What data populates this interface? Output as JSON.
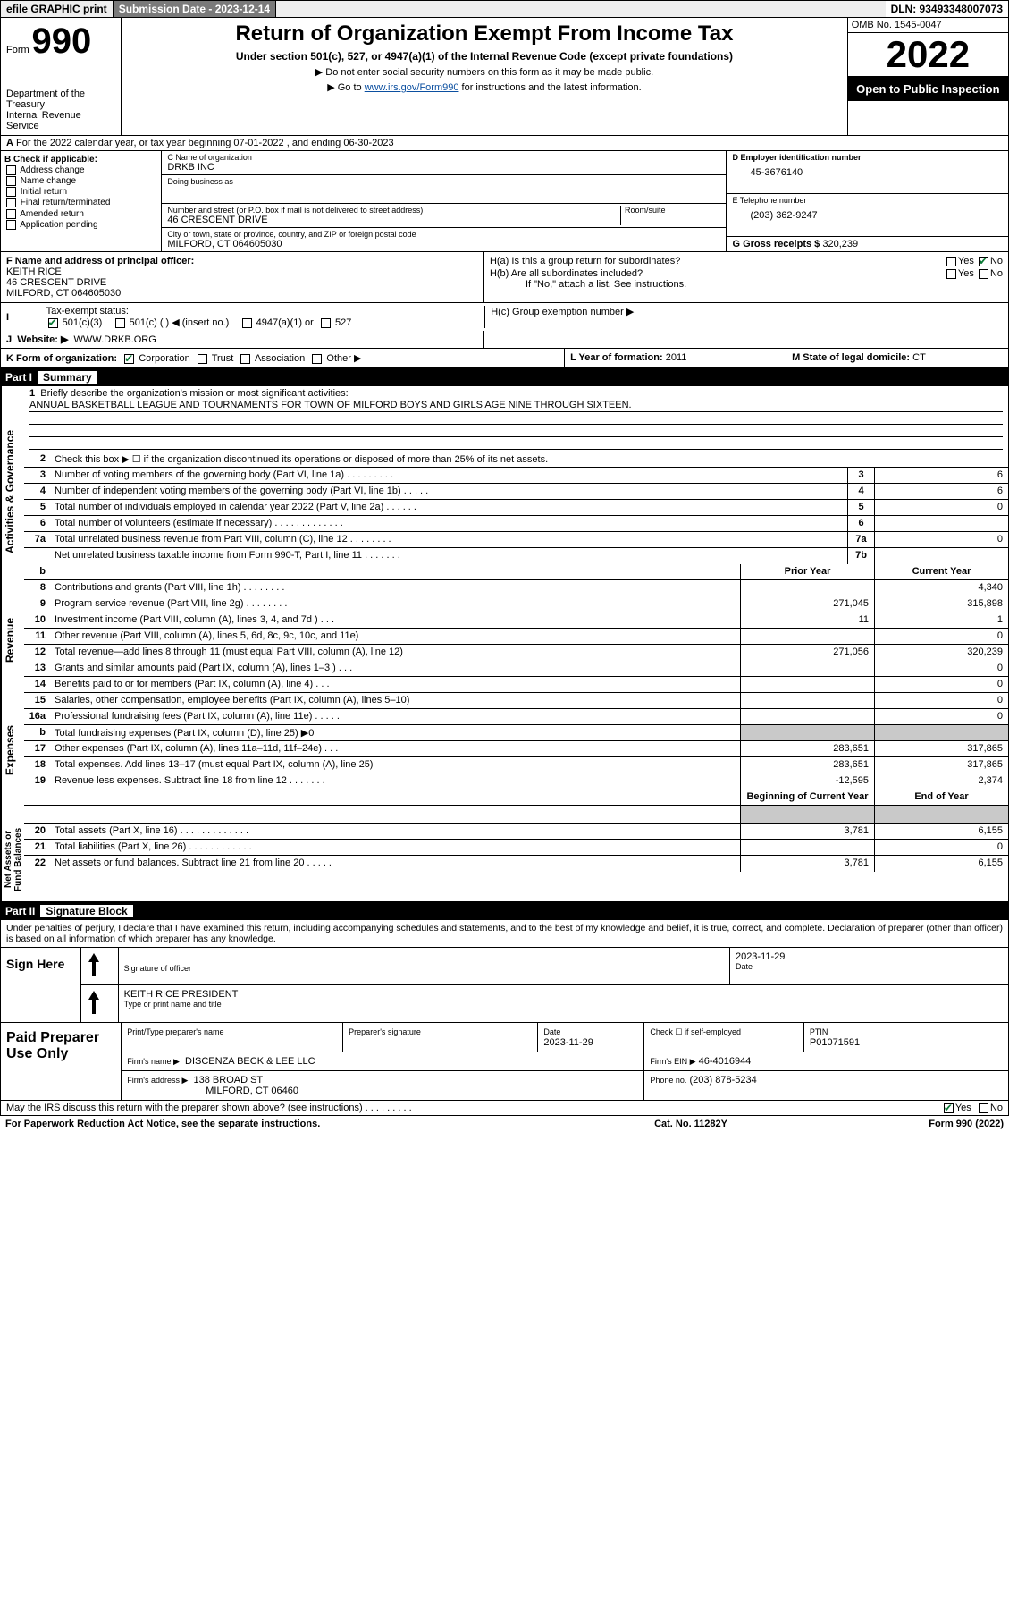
{
  "colors": {
    "accent": "#0b7a36",
    "link": "#0b4fa0",
    "dark": "#7a7a7a"
  },
  "header": {
    "efile": "efile GRAPHIC print",
    "submission": "Submission Date - 2023-12-14",
    "dln": "DLN: 93493348007073"
  },
  "formhead": {
    "form_label": "Form",
    "form_no": "990",
    "title": "Return of Organization Exempt From Income Tax",
    "sub1": "Under section 501(c), 527, or 4947(a)(1) of the Internal Revenue Code (except private foundations)",
    "sub2": "▶ Do not enter social security numbers on this form as it may be made public.",
    "sub3_pre": "▶ Go to ",
    "sub3_link": "www.irs.gov/Form990",
    "sub3_post": " for instructions and the latest information.",
    "dept": "Department of the Treasury\nInternal Revenue Service",
    "omb": "OMB No. 1545-0047",
    "year": "2022",
    "open": "Open to Public Inspection"
  },
  "A": {
    "text": "For the 2022 calendar year, or tax year beginning 07-01-2022   , and ending 06-30-2023"
  },
  "B": {
    "heading": "B Check if applicable:",
    "opts": [
      "Address change",
      "Name change",
      "Initial return",
      "Final return/terminated",
      "Amended return",
      "Application pending"
    ]
  },
  "C": {
    "label": "C Name of organization",
    "name": "DRKB INC",
    "dba_label": "Doing business as",
    "dba": "",
    "addr_label": "Number and street (or P.O. box if mail is not delivered to street address)",
    "room_label": "Room/suite",
    "addr": "46 CRESCENT DRIVE",
    "city_label": "City or town, state or province, country, and ZIP or foreign postal code",
    "city": "MILFORD, CT  064605030"
  },
  "D": {
    "label": "D Employer identification number",
    "val": "45-3676140"
  },
  "E": {
    "label": "E Telephone number",
    "val": "(203) 362-9247"
  },
  "G": {
    "label": "G Gross receipts $",
    "val": "320,239"
  },
  "F": {
    "label": "F Name and address of principal officer:",
    "name": "KEITH RICE",
    "addr1": "46 CRESCENT DRIVE",
    "addr2": "MILFORD, CT  064605030"
  },
  "H": {
    "a": "H(a)  Is this a group return for subordinates?",
    "b": "H(b)  Are all subordinates included?",
    "note": "If \"No,\" attach a list. See instructions.",
    "c": "H(c)  Group exemption number ▶"
  },
  "I": {
    "label": "Tax-exempt status:",
    "opts": [
      "501(c)(3)",
      "501(c) (   ) ◀ (insert no.)",
      "4947(a)(1) or",
      "527"
    ]
  },
  "J": {
    "label": "Website: ▶",
    "val": "WWW.DRKB.ORG"
  },
  "K": {
    "label": "K Form of organization:",
    "opts": [
      "Corporation",
      "Trust",
      "Association",
      "Other ▶"
    ]
  },
  "L": {
    "label": "L Year of formation:",
    "val": "2011"
  },
  "M": {
    "label": "M State of legal domicile:",
    "val": "CT"
  },
  "part1": {
    "tag": "Part I",
    "title": "Summary"
  },
  "mission": {
    "q": "Briefly describe the organization's mission or most significant activities:",
    "text": "ANNUAL BASKETBALL LEAGUE AND TOURNAMENTS FOR TOWN OF MILFORD BOYS AND GIRLS AGE NINE THROUGH SIXTEEN."
  },
  "gov": [
    {
      "n": "2",
      "t": "Check this box ▶ ☐  if the organization discontinued its operations or disposed of more than 25% of its net assets."
    },
    {
      "n": "3",
      "t": "Number of voting members of the governing body (Part VI, line 1a)  .    .    .    .    .    .    .    .    .",
      "bx": "3",
      "v": "6"
    },
    {
      "n": "4",
      "t": "Number of independent voting members of the governing body (Part VI, line 1b)  .    .    .    .    .",
      "bx": "4",
      "v": "6"
    },
    {
      "n": "5",
      "t": "Total number of individuals employed in calendar year 2022 (Part V, line 2a)  .    .    .    .    .    .",
      "bx": "5",
      "v": "0"
    },
    {
      "n": "6",
      "t": "Total number of volunteers (estimate if necessary)  .    .    .    .    .    .    .    .    .    .    .    .    .",
      "bx": "6",
      "v": ""
    },
    {
      "n": "7a",
      "t": "Total unrelated business revenue from Part VIII, column (C), line 12  .    .    .    .    .    .    .    .",
      "bx": "7a",
      "v": "0"
    },
    {
      "n": "",
      "t": "Net unrelated business taxable income from Form 990-T, Part I, line 11  .    .    .    .    .    .    .",
      "bx": "7b",
      "v": ""
    }
  ],
  "col_hdr": {
    "prior": "Prior Year",
    "current": "Current Year"
  },
  "rev": [
    {
      "n": "8",
      "t": "Contributions and grants (Part VIII, line 1h)  .    .    .    .    .    .    .    .",
      "p": "",
      "c": "4,340"
    },
    {
      "n": "9",
      "t": "Program service revenue (Part VIII, line 2g)  .    .    .    .    .    .    .    .",
      "p": "271,045",
      "c": "315,898"
    },
    {
      "n": "10",
      "t": "Investment income (Part VIII, column (A), lines 3, 4, and 7d )  .    .    .",
      "p": "11",
      "c": "1"
    },
    {
      "n": "11",
      "t": "Other revenue (Part VIII, column (A), lines 5, 6d, 8c, 9c, 10c, and 11e)",
      "p": "",
      "c": "0"
    },
    {
      "n": "12",
      "t": "Total revenue—add lines 8 through 11 (must equal Part VIII, column (A), line 12)",
      "p": "271,056",
      "c": "320,239"
    }
  ],
  "exp": [
    {
      "n": "13",
      "t": "Grants and similar amounts paid (Part IX, column (A), lines 1–3 )  .    .    .",
      "p": "",
      "c": "0"
    },
    {
      "n": "14",
      "t": "Benefits paid to or for members (Part IX, column (A), line 4)  .    .    .",
      "p": "",
      "c": "0"
    },
    {
      "n": "15",
      "t": "Salaries, other compensation, employee benefits (Part IX, column (A), lines 5–10)",
      "p": "",
      "c": "0"
    },
    {
      "n": "16a",
      "t": "Professional fundraising fees (Part IX, column (A), line 11e)  .    .    .    .    .",
      "p": "",
      "c": "0"
    },
    {
      "n": "b",
      "t": "Total fundraising expenses (Part IX, column (D), line 25) ▶0",
      "p": "filler",
      "c": "filler"
    },
    {
      "n": "17",
      "t": "Other expenses (Part IX, column (A), lines 11a–11d, 11f–24e)  .    .    .",
      "p": "283,651",
      "c": "317,865"
    },
    {
      "n": "18",
      "t": "Total expenses. Add lines 13–17 (must equal Part IX, column (A), line 25)",
      "p": "283,651",
      "c": "317,865"
    },
    {
      "n": "19",
      "t": "Revenue less expenses. Subtract line 18 from line 12  .    .    .    .    .    .    .",
      "p": "-12,595",
      "c": "2,374"
    }
  ],
  "na_hdr": {
    "beg": "Beginning of Current Year",
    "end": "End of Year"
  },
  "na": [
    {
      "n": "20",
      "t": "Total assets (Part X, line 16)  .    .    .    .    .    .    .    .    .    .    .    .    .",
      "p": "3,781",
      "c": "6,155"
    },
    {
      "n": "21",
      "t": "Total liabilities (Part X, line 26)  .    .    .    .    .    .    .    .    .    .    .    .",
      "p": "",
      "c": "0"
    },
    {
      "n": "22",
      "t": "Net assets or fund balances. Subtract line 21 from line 20  .    .    .    .    .",
      "p": "3,781",
      "c": "6,155"
    }
  ],
  "part2": {
    "tag": "Part II",
    "title": "Signature Block"
  },
  "sig_note": "Under penalties of perjury, I declare that I have examined this return, including accompanying schedules and statements, and to the best of my knowledge and belief, it is true, correct, and complete. Declaration of preparer (other than officer) is based on all information of which preparer has any knowledge.",
  "sign": {
    "lab": "Sign Here",
    "sig_lab": "Signature of officer",
    "date_lab": "Date",
    "date": "2023-11-29",
    "name": "KEITH RICE PRESIDENT",
    "name_lab": "Type or print name and title"
  },
  "prep": {
    "lab": "Paid Preparer Use Only",
    "h": [
      "Print/Type preparer's name",
      "Preparer's signature",
      "Date",
      "",
      "PTIN"
    ],
    "date": "2023-11-29",
    "self": "Check ☐  if self-employed",
    "ptin": "P01071591",
    "firm_name_lab": "Firm's name    ▶",
    "firm_name": "DISCENZA BECK & LEE LLC",
    "firm_ein_lab": "Firm's EIN ▶",
    "firm_ein": "46-4016944",
    "firm_addr_lab": "Firm's address ▶",
    "firm_addr1": "138 BROAD ST",
    "firm_addr2": "MILFORD, CT  06460",
    "phone_lab": "Phone no.",
    "phone": "(203) 878-5234"
  },
  "discuss": "May the IRS discuss this return with the preparer shown above? (see instructions)  .    .    .    .    .    .    .    .    .",
  "paperwork": {
    "a": "For Paperwork Reduction Act Notice, see the separate instructions.",
    "b": "Cat. No. 11282Y",
    "c": "Form 990 (2022)"
  },
  "labels": {
    "yes": "Yes",
    "no": "No"
  }
}
